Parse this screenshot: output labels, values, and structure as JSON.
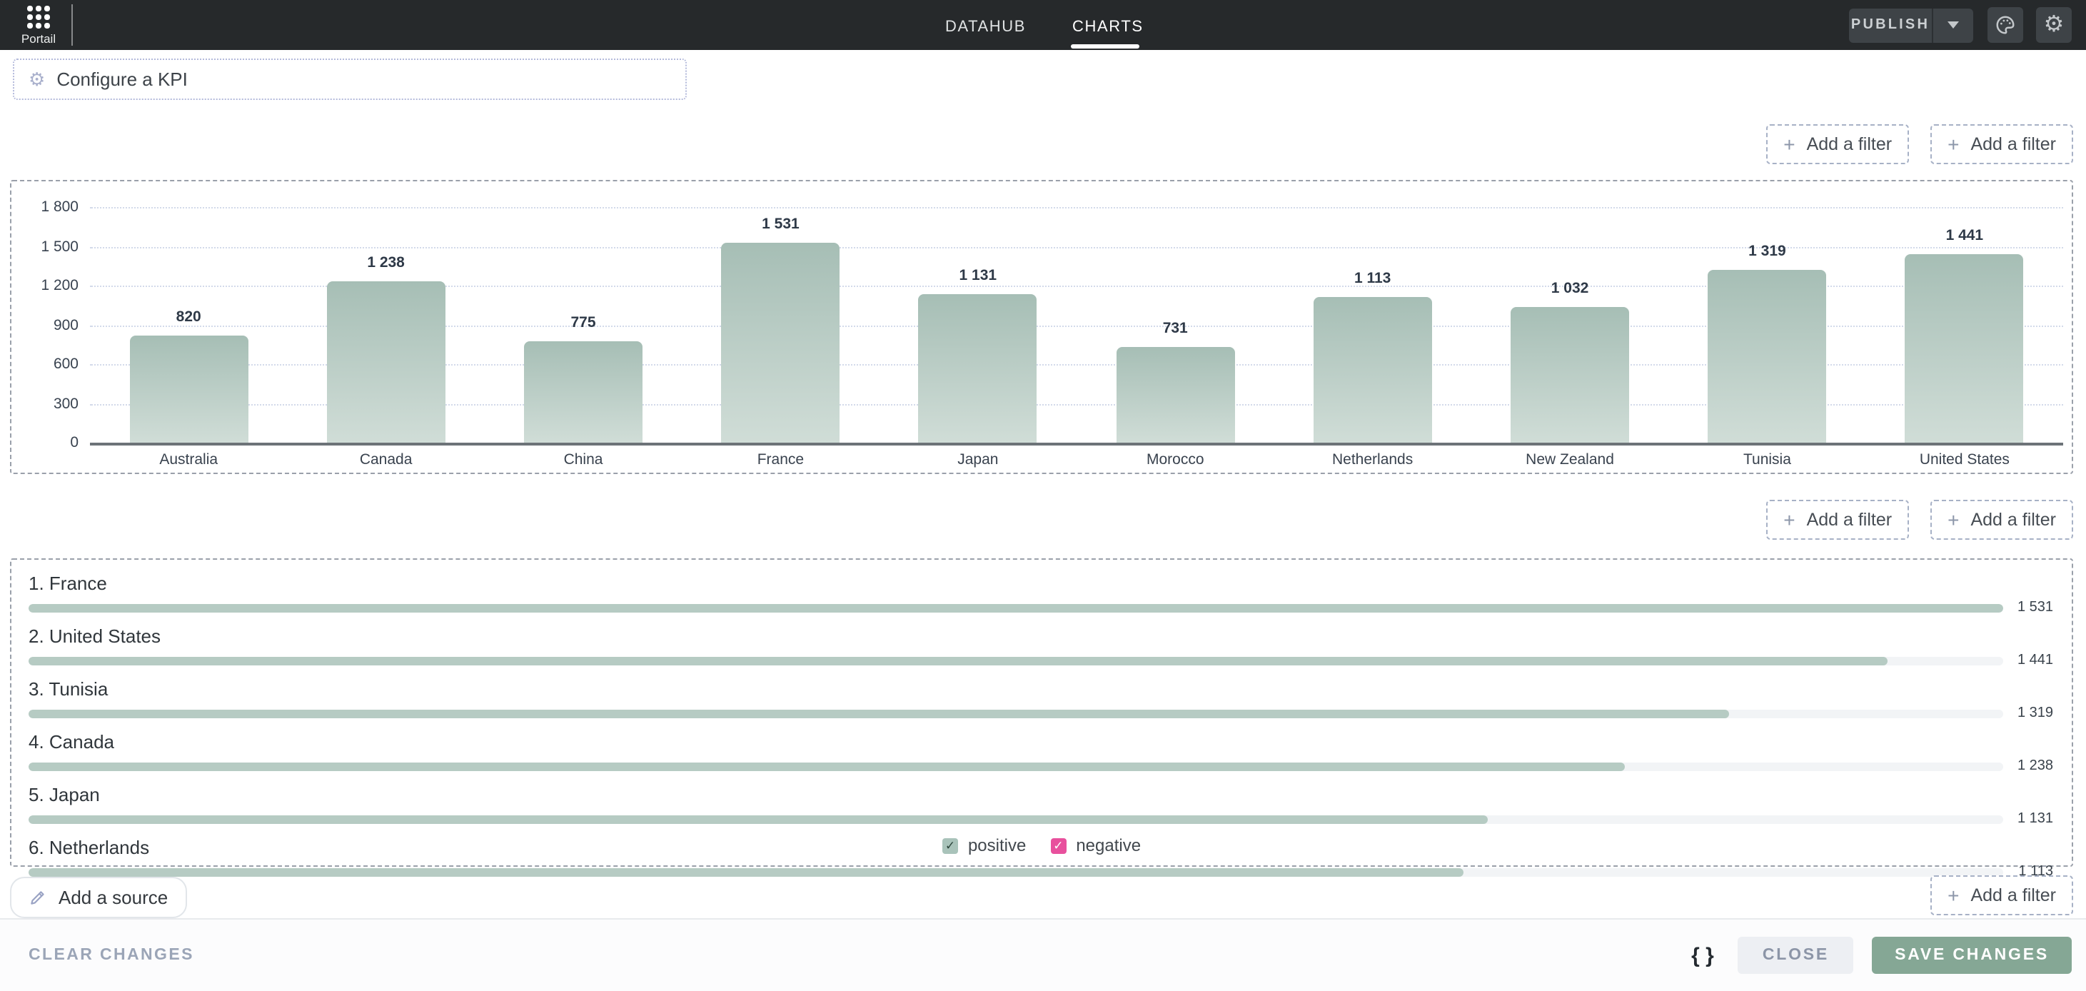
{
  "header": {
    "portal_label": "Portail",
    "tabs": [
      {
        "label": "DATAHUB",
        "active": false
      },
      {
        "label": "CHARTS",
        "active": true
      }
    ],
    "publish_label": "PUBLISH",
    "icons": [
      "apps-grid-icon",
      "caret-down-icon",
      "palette-icon",
      "gear-icon"
    ],
    "colors": {
      "header_bg": "#26292b",
      "button_bg": "#3e4347"
    }
  },
  "kpi": {
    "label": "Configure a KPI",
    "icon": "gear-icon"
  },
  "filters": {
    "plus": "+",
    "add_filter_label": "Add a filter"
  },
  "source": {
    "add_source_label": "Add a source",
    "icon": "pencil-icon"
  },
  "footer": {
    "clear_label": "CLEAR CHANGES",
    "braces_label": "{ }",
    "close_label": "CLOSE",
    "save_label": "SAVE CHANGES",
    "save_color": "#85a795"
  },
  "chart_data": [
    {
      "type": "bar",
      "title": "",
      "xlabel": "",
      "ylabel": "",
      "categories": [
        "Australia",
        "Canada",
        "China",
        "France",
        "Japan",
        "Morocco",
        "Netherlands",
        "New Zealand",
        "Tunisia",
        "United States"
      ],
      "values": [
        820,
        1238,
        775,
        1531,
        1131,
        731,
        1113,
        1032,
        1319,
        1441
      ],
      "value_labels": [
        "820",
        "1 238",
        "775",
        "1 531",
        "1 131",
        "731",
        "1 113",
        "1 032",
        "1 319",
        "1 441"
      ],
      "ylim": [
        0,
        1800
      ],
      "yticks": [
        0,
        300,
        600,
        900,
        1200,
        1500,
        1800
      ],
      "ytick_labels": [
        "0",
        "300",
        "600",
        "900",
        "1 200",
        "1 500",
        "1 800"
      ],
      "grid": "horizontal-dotted",
      "legend_position": "none",
      "bar_color_top": "#a6beb5",
      "bar_color_bottom": "#d0ddd7"
    },
    {
      "type": "bar",
      "orientation": "horizontal",
      "title": "",
      "categories": [
        "1. France",
        "2. United States",
        "3. Tunisia",
        "4. Canada",
        "5. Japan",
        "6. Netherlands"
      ],
      "values": [
        1531,
        1441,
        1319,
        1238,
        1131,
        1113
      ],
      "value_labels": [
        "1 531",
        "1 441",
        "1 319",
        "1 238",
        "1 131",
        "1 113"
      ],
      "max": 1531,
      "track_color": "#f2f4f6",
      "fill_color": "#b6cbc3",
      "legend_position": "bottom-center",
      "legend": [
        {
          "label": "positive",
          "checked": true,
          "check": "✓",
          "color": "#a9c3ba",
          "check_color": "#2c453b"
        },
        {
          "label": "negative",
          "checked": true,
          "check": "✓",
          "color": "#e8509d",
          "check_color": "#ffffff"
        }
      ]
    }
  ]
}
